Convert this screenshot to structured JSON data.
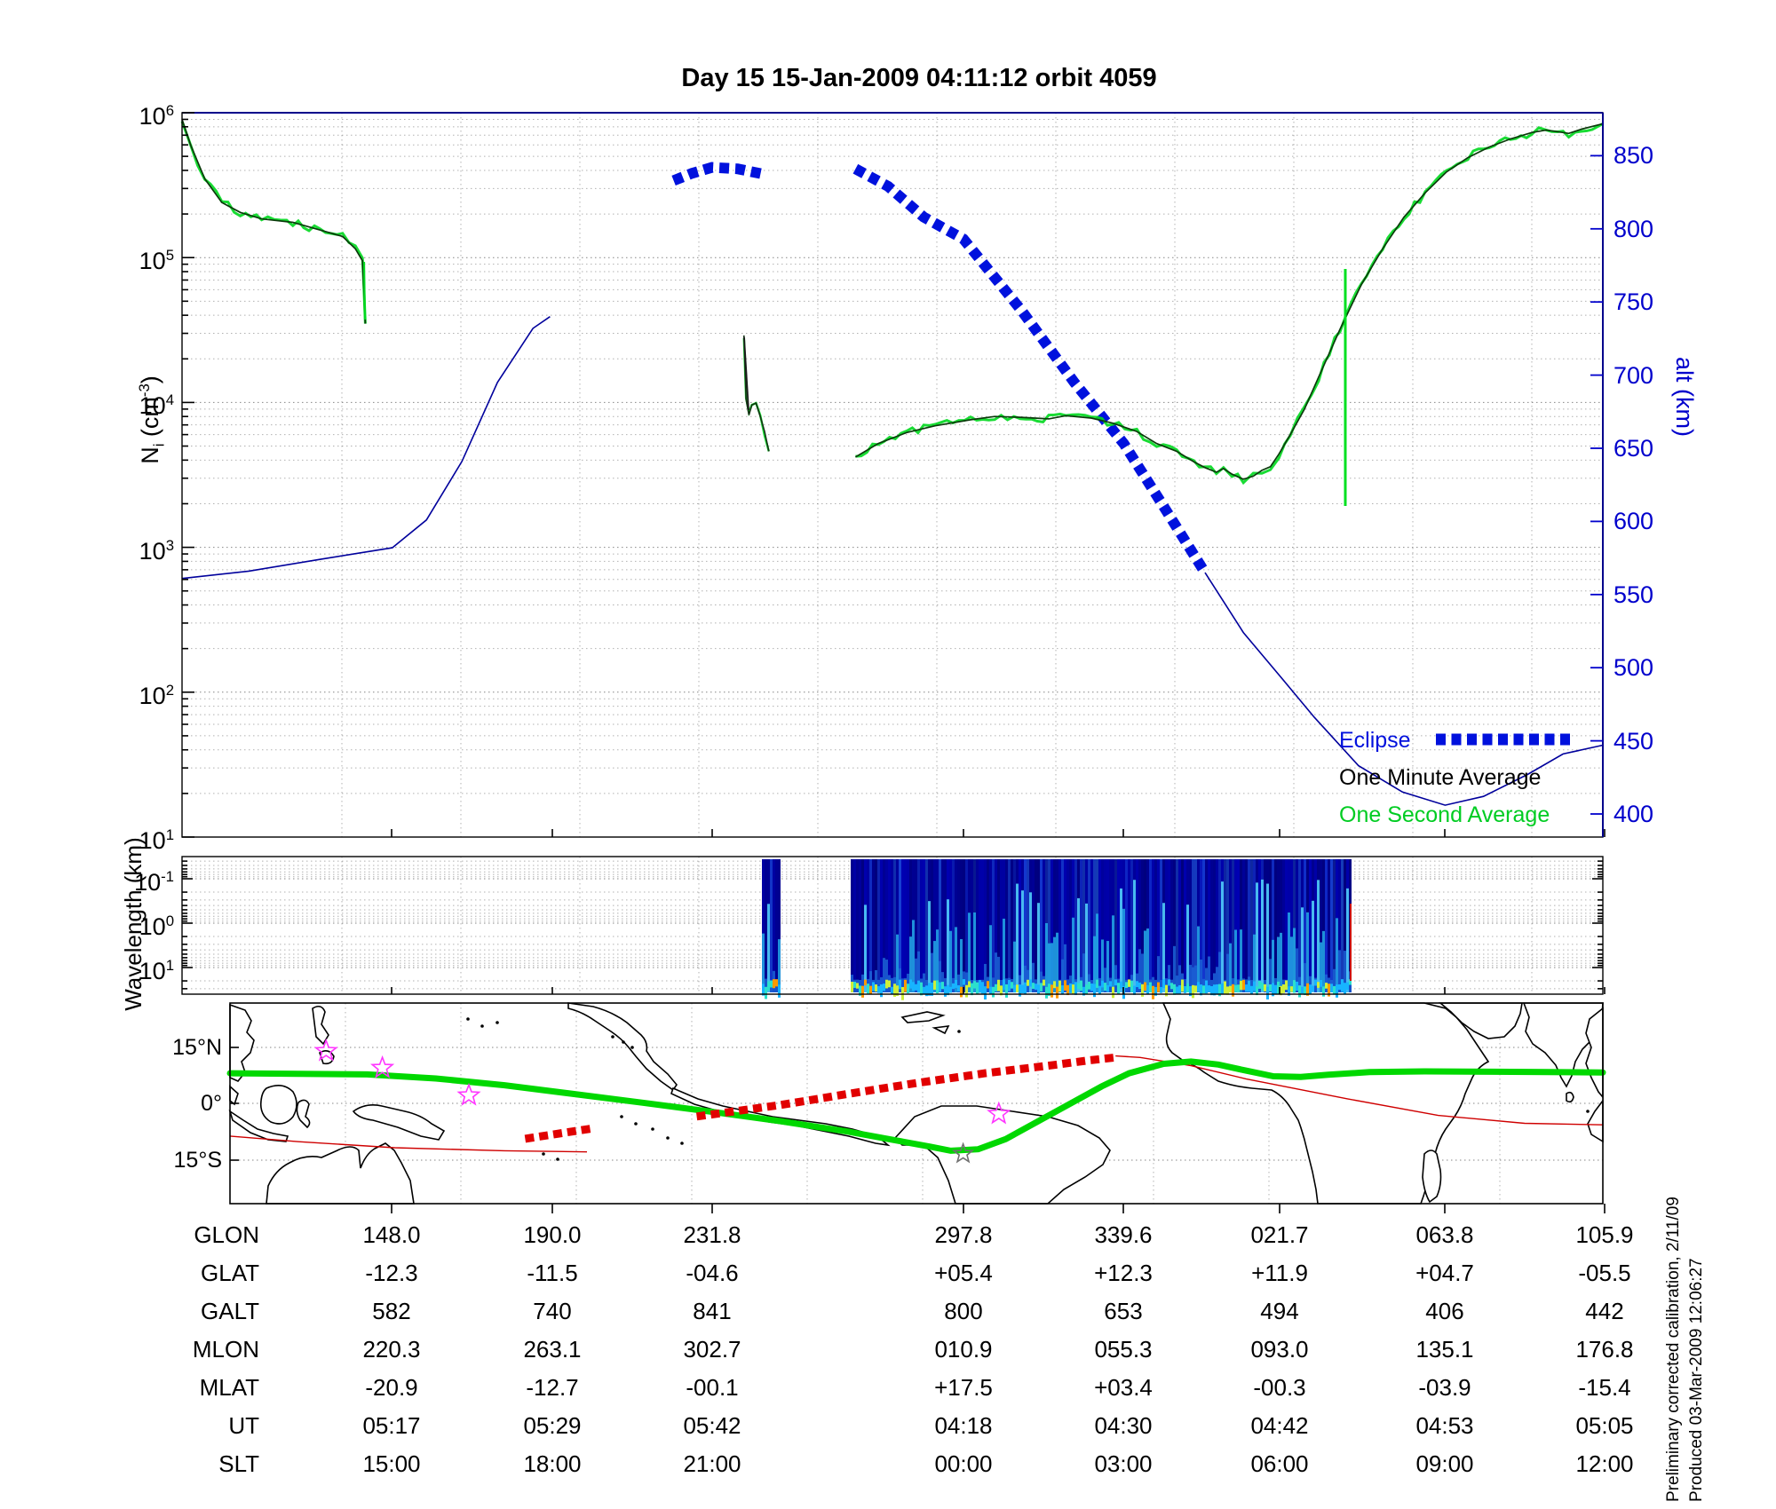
{
  "title": "Day 15  15-Jan-2009 04:11:12   orbit 4059",
  "top_panel": {
    "y_left": {
      "label_pre": "N",
      "label_sub": "i",
      "label_mid": " (cm",
      "label_sup": "-3",
      "label_post": ")",
      "ticks": [
        {
          "base": "10",
          "exp": "6"
        },
        {
          "base": "10",
          "exp": "5"
        },
        {
          "base": "10",
          "exp": "4"
        },
        {
          "base": "10",
          "exp": "3"
        },
        {
          "base": "10",
          "exp": "2"
        },
        {
          "base": "10",
          "exp": "1"
        }
      ]
    },
    "y_right": {
      "label": "alt (km)",
      "color": "#0000cc",
      "ticks": [
        "850",
        "800",
        "750",
        "700",
        "650",
        "600",
        "550",
        "500",
        "450",
        "400"
      ]
    },
    "legend": [
      {
        "label": "Eclipse",
        "color": "#0011dd",
        "style": "dashed"
      },
      {
        "label": "One Minute Average",
        "color": "#000000",
        "style": "solid"
      },
      {
        "label": "One Second Average",
        "color": "#00cc22",
        "style": "solid"
      }
    ]
  },
  "wavelength_panel": {
    "y_label": "Wavelength (km)",
    "ticks": [
      {
        "base": "10",
        "exp": "-1"
      },
      {
        "base": "10",
        "exp": "0"
      },
      {
        "base": "10",
        "exp": "1"
      }
    ]
  },
  "map_panel": {
    "lat_labels": [
      "15°N",
      "0°",
      "15°S"
    ]
  },
  "table": {
    "rows": [
      {
        "label": "GLON",
        "values": [
          "148.0",
          "190.0",
          "231.8",
          "297.8",
          "339.6",
          "021.7",
          "063.8",
          "105.9"
        ]
      },
      {
        "label": "GLAT",
        "values": [
          "-12.3",
          "-11.5",
          "-04.6",
          "+05.4",
          "+12.3",
          "+11.9",
          "+04.7",
          "-05.5"
        ]
      },
      {
        "label": "GALT",
        "values": [
          "582",
          "740",
          "841",
          "800",
          "653",
          "494",
          "406",
          "442"
        ]
      },
      {
        "label": "MLON",
        "values": [
          "220.3",
          "263.1",
          "302.7",
          "010.9",
          "055.3",
          "093.0",
          "135.1",
          "176.8"
        ]
      },
      {
        "label": "MLAT",
        "values": [
          "-20.9",
          "-12.7",
          "-00.1",
          "+17.5",
          "+03.4",
          "-00.3",
          "-03.9",
          "-15.4"
        ]
      },
      {
        "label": "UT",
        "values": [
          "05:17",
          "05:29",
          "05:42",
          "04:18",
          "04:30",
          "04:42",
          "04:53",
          "05:05"
        ]
      },
      {
        "label": "SLT",
        "values": [
          "15:00",
          "18:00",
          "21:00",
          "00:00",
          "03:00",
          "06:00",
          "09:00",
          "12:00"
        ]
      }
    ]
  },
  "footer_notes": [
    "Preliminary corrected calibration, 2/11/09",
    "Produced 03-Mar-2009 12:06:27"
  ],
  "chart_data": [
    {
      "type": "line",
      "title": "Day 15  15-Jan-2009 04:11:12   orbit 4059",
      "xlabel": "geographic longitude (columns of bottom table, GLON row)",
      "ylabel_left": "Ni (cm^-3), log scale 10^1..10^6",
      "ylabel_right": "alt (km), linear 400..850+",
      "legend_position": "lower right inside axes",
      "grid": true,
      "series": [
        {
          "name": "altitude_km_left",
          "axis": "right",
          "style": "thin blue line",
          "points_xfrac_km": [
            [
              0.0,
              561
            ],
            [
              0.047,
              566
            ],
            [
              0.097,
              574
            ],
            [
              0.148,
              582
            ],
            [
              0.172,
              601
            ],
            [
              0.197,
              641
            ],
            [
              0.222,
              695
            ],
            [
              0.247,
              732
            ],
            [
              0.259,
              740
            ]
          ]
        },
        {
          "name": "altitude_km_eclipse_arc1",
          "axis": "right",
          "style": "thick blue dashed (Eclipse)",
          "points_xfrac_km": [
            [
              0.346,
              833
            ],
            [
              0.359,
              838
            ],
            [
              0.373,
              842
            ],
            [
              0.391,
              841
            ],
            [
              0.411,
              837
            ]
          ]
        },
        {
          "name": "altitude_km_eclipse_arc2",
          "axis": "right",
          "style": "thick blue dashed (Eclipse)",
          "points_xfrac_km": [
            [
              0.474,
              841
            ],
            [
              0.497,
              829
            ],
            [
              0.522,
              808
            ],
            [
              0.55,
              793
            ],
            [
              0.591,
              744
            ],
            [
              0.628,
              695
            ],
            [
              0.663,
              653
            ],
            [
              0.691,
              610
            ],
            [
              0.72,
              565
            ]
          ]
        },
        {
          "name": "altitude_km_right",
          "axis": "right",
          "style": "thin blue line, minimum 406 km",
          "points_xfrac_km": [
            [
              0.72,
              565
            ],
            [
              0.747,
              524
            ],
            [
              0.773,
              494
            ],
            [
              0.797,
              466
            ],
            [
              0.828,
              433
            ],
            [
              0.859,
              415
            ],
            [
              0.889,
              406
            ],
            [
              0.916,
              412
            ],
            [
              0.947,
              427
            ],
            [
              0.972,
              441
            ],
            [
              1.0,
              447
            ]
          ]
        },
        {
          "name": "Ni_segment1",
          "axis": "left",
          "style": "one-minute (dark) + one-second (green) overlaid",
          "points_xfrac_cm3": [
            [
              0.0,
              900000
            ],
            [
              0.006,
              600000
            ],
            [
              0.016,
              350000
            ],
            [
              0.028,
              240000
            ],
            [
              0.041,
              205000
            ],
            [
              0.056,
              185000
            ],
            [
              0.078,
              175000
            ],
            [
              0.097,
              155000
            ],
            [
              0.113,
              140000
            ],
            [
              0.122,
              115000
            ],
            [
              0.127,
              95000
            ],
            [
              0.128,
              60000
            ],
            [
              0.129,
              35000
            ]
          ]
        },
        {
          "name": "Ni_segment2",
          "axis": "left",
          "style": "short burst with narrow spike to 2.9e4",
          "points_xfrac_cm3": [
            [
              0.3955,
              29000
            ],
            [
              0.397,
              10500
            ],
            [
              0.399,
              8200
            ],
            [
              0.401,
              9600
            ],
            [
              0.404,
              9900
            ],
            [
              0.407,
              8000
            ],
            [
              0.41,
              6300
            ],
            [
              0.413,
              4600
            ]
          ]
        },
        {
          "name": "Ni_segment3",
          "axis": "left",
          "style": "one-minute (dark) + one-second (green) overlaid; green dropout spike near xfrac 0.819",
          "points_xfrac_cm3": [
            [
              0.474,
              4200
            ],
            [
              0.49,
              5200
            ],
            [
              0.51,
              6200
            ],
            [
              0.53,
              6900
            ],
            [
              0.555,
              7600
            ],
            [
              0.572,
              8000
            ],
            [
              0.59,
              7900
            ],
            [
              0.61,
              7700
            ],
            [
              0.622,
              8100
            ],
            [
              0.64,
              7800
            ],
            [
              0.655,
              7200
            ],
            [
              0.672,
              6300
            ],
            [
              0.686,
              5200
            ],
            [
              0.7,
              4600
            ],
            [
              0.712,
              3900
            ],
            [
              0.72,
              3550
            ],
            [
              0.728,
              3300
            ],
            [
              0.733,
              3500
            ],
            [
              0.739,
              3200
            ],
            [
              0.747,
              2950
            ],
            [
              0.754,
              3100
            ],
            [
              0.76,
              3400
            ],
            [
              0.766,
              3600
            ],
            [
              0.772,
              4400
            ],
            [
              0.78,
              6000
            ],
            [
              0.79,
              9000
            ],
            [
              0.8,
              15000
            ],
            [
              0.815,
              32000
            ],
            [
              0.83,
              65000
            ],
            [
              0.845,
              115000
            ],
            [
              0.86,
              190000
            ],
            [
              0.875,
              280000
            ],
            [
              0.89,
              390000
            ],
            [
              0.905,
              490000
            ],
            [
              0.92,
              580000
            ],
            [
              0.935,
              660000
            ],
            [
              0.95,
              730000
            ],
            [
              0.96,
              760000
            ],
            [
              0.968,
              740000
            ],
            [
              0.976,
              720000
            ],
            [
              0.985,
              770000
            ],
            [
              1.0,
              840000
            ]
          ]
        }
      ]
    },
    {
      "type": "heatmap",
      "ylabel": "Wavelength (km)",
      "y_ticks": [
        "0.1",
        "1",
        "10"
      ],
      "y_axis": "log, reversed (0.1 km on top)",
      "x_axis": "shared longitude axis with top panel",
      "data_segments": [
        {
          "xfrac_range": [
            0.408,
            0.42
          ],
          "note": "narrow strip of spectral data"
        },
        {
          "xfrac_range": [
            0.47,
            0.823
          ],
          "note": "main spectrogram block: dark blue background, cyan/yellow turbulence streaks strongest at long wavelengths (bottom rows)"
        }
      ]
    },
    {
      "type": "line",
      "title": "ground-track world map, lat 25N..25S, grid 15N/0/15S",
      "series": [
        {
          "name": "magnetic_equator",
          "style": "thick green",
          "points_xfrac_lat": [
            [
              0.0,
              8.0
            ],
            [
              0.1,
              7.7
            ],
            [
              0.15,
              6.6
            ],
            [
              0.2,
              4.8
            ],
            [
              0.25,
              2.5
            ],
            [
              0.3,
              0.2
            ],
            [
              0.35,
              -2.2
            ],
            [
              0.4,
              -4.7
            ],
            [
              0.45,
              -7.5
            ],
            [
              0.48,
              -9.5
            ],
            [
              0.51,
              -11.5
            ],
            [
              0.525,
              -12.6
            ],
            [
              0.545,
              -12.2
            ],
            [
              0.565,
              -9.5
            ],
            [
              0.585,
              -5.5
            ],
            [
              0.61,
              -0.5
            ],
            [
              0.635,
              4.5
            ],
            [
              0.655,
              8.0
            ],
            [
              0.68,
              10.5
            ],
            [
              0.7,
              11.1
            ],
            [
              0.72,
              10.3
            ],
            [
              0.74,
              8.7
            ],
            [
              0.76,
              7.2
            ],
            [
              0.78,
              7.0
            ],
            [
              0.8,
              7.6
            ],
            [
              0.83,
              8.3
            ],
            [
              0.87,
              8.5
            ],
            [
              0.92,
              8.4
            ],
            [
              0.96,
              8.3
            ],
            [
              1.0,
              8.2
            ]
          ]
        },
        {
          "name": "sat_track_thin1",
          "style": "thin red",
          "points_xfrac_lat": [
            [
              0.0,
              -8.7
            ],
            [
              0.05,
              -10.2
            ],
            [
              0.12,
              -11.8
            ],
            [
              0.2,
              -12.6
            ],
            [
              0.26,
              -12.9
            ]
          ]
        },
        {
          "name": "sat_track_eclipseA",
          "style": "thick red dashed",
          "points_xfrac_lat": [
            [
              0.215,
              -9.4
            ],
            [
              0.265,
              -6.6
            ]
          ]
        },
        {
          "name": "sat_track_eclipseB",
          "style": "thick red dashed",
          "points_xfrac_lat": [
            [
              0.34,
              -3.5
            ],
            [
              0.4,
              -0.5
            ],
            [
              0.45,
              2.5
            ],
            [
              0.5,
              5.4
            ],
            [
              0.55,
              8.0
            ],
            [
              0.6,
              10.2
            ],
            [
              0.625,
              11.4
            ],
            [
              0.645,
              12.2
            ]
          ]
        },
        {
          "name": "sat_track_thin2",
          "style": "thin red",
          "points_xfrac_lat": [
            [
              0.645,
              12.6
            ],
            [
              0.663,
              12.2
            ],
            [
              0.7,
              10.0
            ],
            [
              0.74,
              6.5
            ],
            [
              0.814,
              1.2
            ],
            [
              0.88,
              -3.2
            ],
            [
              0.943,
              -5.3
            ],
            [
              1.0,
              -5.7
            ]
          ]
        },
        {
          "name": "site_stars_magenta",
          "style": "open magenta stars",
          "points_xfrac_lat": [
            [
              0.07,
              13.9
            ],
            [
              0.111,
              9.4
            ],
            [
              0.174,
              2.1
            ],
            [
              0.56,
              -2.8
            ]
          ]
        },
        {
          "name": "site_star_gray",
          "style": "open gray star",
          "points_xfrac_lat": [
            [
              0.534,
              -13.4
            ]
          ]
        }
      ]
    }
  ],
  "colors": {
    "right_axis_blue": "#0000cc",
    "eclipse_blue": "#0011dd",
    "one_second_green": "#00d81e",
    "one_minute_dark": "#0b3a0b",
    "map_track_green": "#00d800",
    "map_eclipse_red": "#e10000",
    "star_magenta": "#ff35ff"
  }
}
